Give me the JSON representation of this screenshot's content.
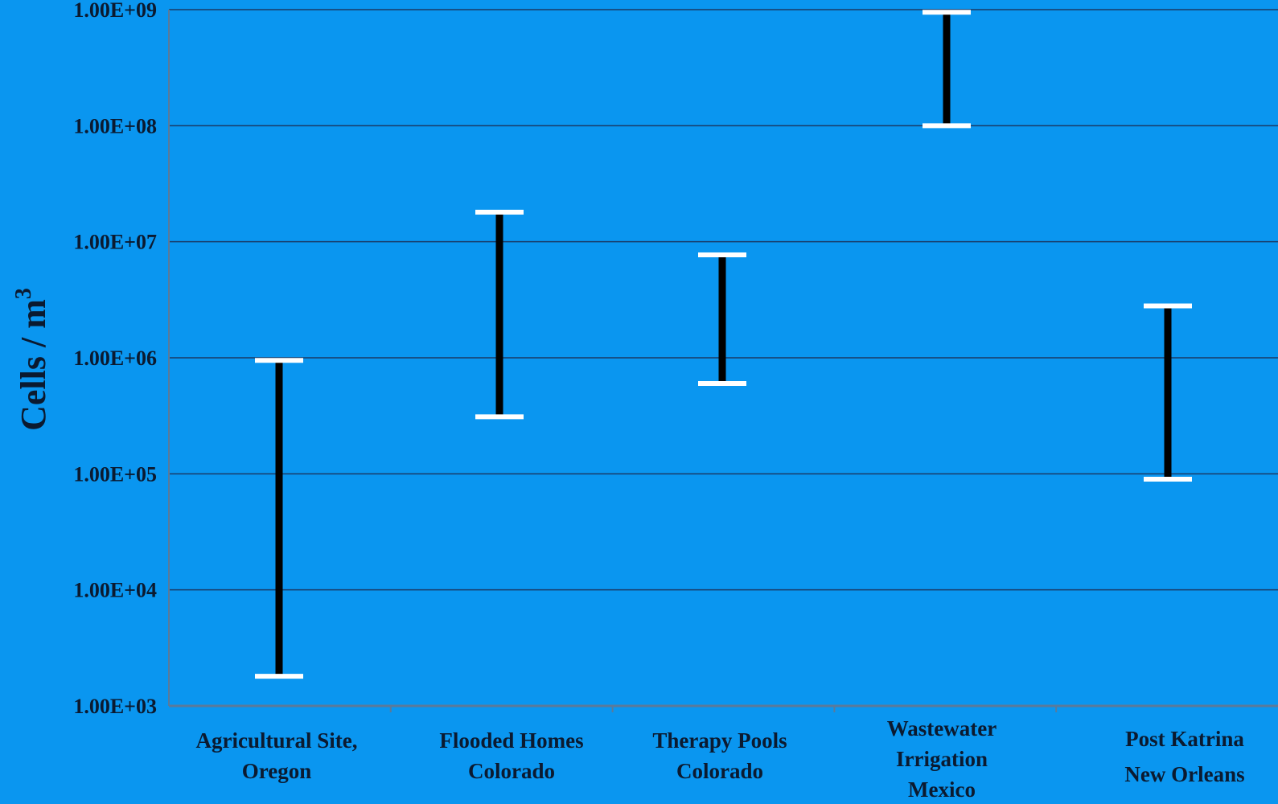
{
  "chart_data": {
    "type": "range",
    "ylabel": "Cells / m",
    "ylabel_superscript": "3",
    "yscale": "log",
    "ylim": [
      1000,
      1000000000
    ],
    "y_ticks": [
      "1.00E+03",
      "1.00E+04",
      "1.00E+05",
      "1.00E+06",
      "1.00E+07",
      "1.00E+08",
      "1.00E+09"
    ],
    "grid": true,
    "categories": [
      [
        "Agricultural Site,",
        "Oregon"
      ],
      [
        "Flooded Homes",
        "Colorado"
      ],
      [
        "Therapy  Pools",
        "Colorado"
      ],
      [
        "Wastewater",
        "Irrigation",
        "Mexico"
      ],
      [
        "Post Katrina",
        "New Orleans"
      ]
    ],
    "ranges": [
      {
        "low": 1800,
        "high": 950000
      },
      {
        "low": 310000,
        "high": 18000000
      },
      {
        "low": 600000,
        "high": 7700000
      },
      {
        "low": 100000000,
        "high": 950000000
      },
      {
        "low": 90000,
        "high": 2800000
      }
    ],
    "colors": {
      "background": "#0a96f0",
      "gridline": "#1a3a66",
      "range_bar": "#000000",
      "cap": "#ffffff",
      "text": "#0b1a30"
    }
  }
}
